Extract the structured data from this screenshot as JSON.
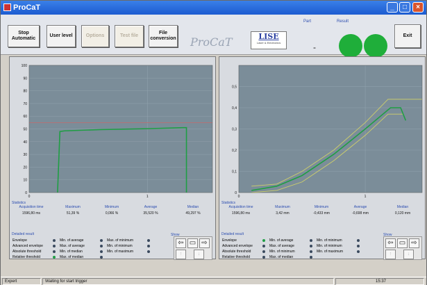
{
  "window": {
    "title": "ProCaT"
  },
  "window_controls": {
    "minimize": "_",
    "maximize": "□",
    "close": "×"
  },
  "toolbar": {
    "stop_automatic": "Stop Automatic",
    "user_level": "User level",
    "options": "Options",
    "test_file": "Test file",
    "file_conversion": "File conversion",
    "brand": "ProCaT",
    "logo_text": "LISE",
    "logo_sub": "Laser & Electronics",
    "part_label": "Part",
    "part_value": "-",
    "result_label": "Result",
    "exit": "Exit"
  },
  "left_chart": {
    "chart_data": {
      "type": "line",
      "xlim": [
        0,
        1.55
      ],
      "ylim": [
        0,
        100
      ],
      "x_ticks": [
        "0",
        "1"
      ],
      "y_ticks": [
        "0",
        "10",
        "20",
        "30",
        "40",
        "50",
        "60",
        "70",
        "80",
        "90",
        "100"
      ],
      "threshold": 55,
      "series": [
        {
          "x": [
            0.24,
            0.26,
            0.3,
            0.6,
            1.0,
            1.3,
            1.33,
            1.33
          ],
          "y": [
            0,
            48,
            48.5,
            49.5,
            50.2,
            51.0,
            51.0,
            0
          ]
        }
      ]
    }
  },
  "right_chart": {
    "chart_data": {
      "type": "line",
      "xlim": [
        0,
        1.45
      ],
      "ylim": [
        0,
        0.6
      ],
      "x_ticks": [
        "0",
        "1"
      ],
      "y_ticks": [
        "0",
        "0,1",
        "0,2",
        "0,3",
        "0,4",
        "0,5"
      ],
      "series": [
        {
          "x": [
            0.1,
            0.3,
            0.5,
            0.75,
            1.0,
            1.18,
            1.3,
            1.45
          ],
          "y": [
            0.03,
            0.04,
            0.1,
            0.2,
            0.33,
            0.44,
            0.44,
            0.44
          ]
        },
        {
          "x": [
            0.1,
            0.3,
            0.5,
            0.75,
            1.0,
            1.18,
            1.3
          ],
          "y": [
            0.0,
            0.01,
            0.05,
            0.15,
            0.27,
            0.37,
            0.37
          ]
        },
        {
          "x": [
            0.1,
            0.3,
            0.5,
            0.75,
            1.0,
            1.2,
            1.28,
            1.32
          ],
          "y": [
            0.01,
            0.03,
            0.08,
            0.18,
            0.3,
            0.4,
            0.4,
            0.34
          ]
        }
      ]
    }
  },
  "left_stats": {
    "title": "Statistics",
    "items": [
      {
        "label": "Acquisition time",
        "value": "1596,80 ms"
      },
      {
        "label": "Maximum",
        "value": "51,39 %"
      },
      {
        "label": "Minimum",
        "value": "0,066 %"
      },
      {
        "label": "Average",
        "value": "35,520 %"
      },
      {
        "label": "Median",
        "value": "49,297 %"
      }
    ]
  },
  "right_stats": {
    "title": "Statistics",
    "items": [
      {
        "label": "Acquisition time",
        "value": "1596,80 ms"
      },
      {
        "label": "Maximum",
        "value": "3,42 mm"
      },
      {
        "label": "Minimum",
        "value": "-0,433 mm"
      },
      {
        "label": "Average",
        "value": "-0,698 mm"
      },
      {
        "label": "Median",
        "value": "0,120 mm"
      }
    ]
  },
  "left_eval": {
    "title": "Detailed result",
    "col1": [
      "Envelope",
      "Advanced envelope",
      "Absolute threshold",
      "Relative threshold"
    ],
    "col2": [
      "Min. of average",
      "Max. of average",
      "Min. of median",
      "Max. of median"
    ],
    "col3": [
      "Max. of minimum",
      "Min. of minimum",
      "Min. of maximum"
    ],
    "show_label": "Show"
  },
  "right_eval": {
    "title": "Detailed result",
    "col1": [
      "Envelope",
      "Advanced envelope",
      "Absolute threshold",
      "Relative threshold"
    ],
    "col2": [
      "Min. of average",
      "Max. of average",
      "Min. of minimum",
      "Max. of median"
    ],
    "col3": [
      "Min. of minimum",
      "Min. of minimum",
      "Min. of maximum"
    ],
    "show_label": "Show"
  },
  "statusbar": {
    "mode": "Expert",
    "message": "Waiting for start trigger",
    "time": "15:37"
  },
  "colors": {
    "plot_bg": "#7b8d99",
    "curve_green": "#1f9e44",
    "envelope_yellow": "#cfd06a",
    "threshold_red": "#c46a6a",
    "led_green": "#1fae3a"
  }
}
